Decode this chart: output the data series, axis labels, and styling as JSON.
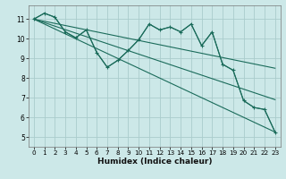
{
  "title": "",
  "xlabel": "Humidex (Indice chaleur)",
  "background_color": "#cce8e8",
  "grid_color": "#aacccc",
  "line_color": "#1a6b5a",
  "xlim": [
    -0.5,
    23.5
  ],
  "ylim": [
    4.5,
    11.7
  ],
  "xticks": [
    0,
    1,
    2,
    3,
    4,
    5,
    6,
    7,
    8,
    9,
    10,
    11,
    12,
    13,
    14,
    15,
    16,
    17,
    18,
    19,
    20,
    21,
    22,
    23
  ],
  "yticks": [
    5,
    6,
    7,
    8,
    9,
    10,
    11
  ],
  "series_main": {
    "x": [
      0,
      1,
      2,
      3,
      4,
      5,
      6,
      7,
      8,
      9,
      10,
      11,
      12,
      13,
      14,
      15,
      16,
      17,
      18,
      19,
      20,
      21,
      22,
      23
    ],
    "y": [
      11.0,
      11.3,
      11.1,
      10.35,
      10.05,
      10.45,
      9.3,
      8.55,
      8.9,
      9.4,
      9.95,
      10.75,
      10.45,
      10.6,
      10.35,
      10.75,
      9.65,
      10.35,
      8.7,
      8.4,
      6.85,
      6.5,
      6.4,
      5.25
    ]
  },
  "series_smooth": {
    "x": [
      0,
      1,
      2,
      3,
      4,
      5,
      6,
      7,
      8,
      9,
      10,
      11,
      12,
      13,
      14,
      15,
      16,
      17,
      18,
      19,
      20,
      21,
      22,
      23
    ],
    "y": [
      11.0,
      11.3,
      11.1,
      10.35,
      10.05,
      10.45,
      9.3,
      8.55,
      8.9,
      9.4,
      9.95,
      10.75,
      10.45,
      10.6,
      10.35,
      10.75,
      9.65,
      10.35,
      8.7,
      8.4,
      6.85,
      6.5,
      6.4,
      5.25
    ]
  },
  "diag_lines": [
    {
      "x": [
        0,
        23
      ],
      "y": [
        11.0,
        8.5
      ]
    },
    {
      "x": [
        0,
        23
      ],
      "y": [
        11.0,
        6.9
      ]
    },
    {
      "x": [
        0,
        23
      ],
      "y": [
        11.0,
        5.25
      ]
    }
  ]
}
